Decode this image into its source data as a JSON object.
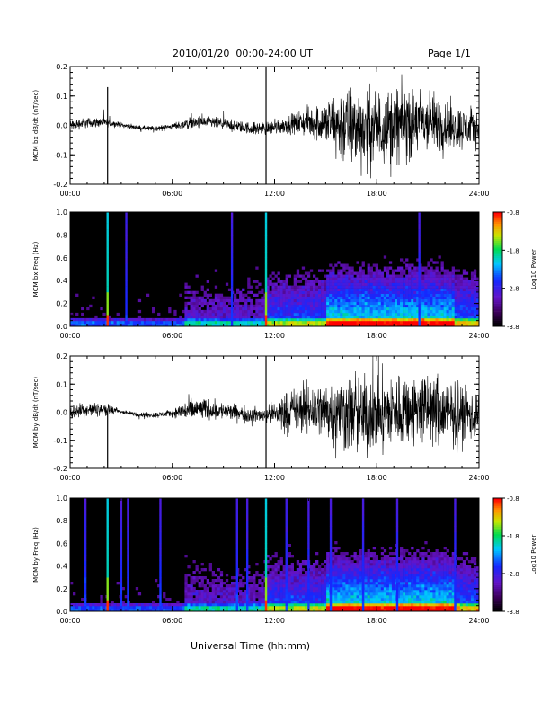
{
  "header": {
    "title": "2010/01/20  00:00-24:00 UT",
    "page": "Page 1/1"
  },
  "x_axis_title": "Universal Time (hh:mm)",
  "chart_data": [
    {
      "type": "line",
      "name": "MCM bx dB/dt",
      "ylabel": "MCM bx dB/dt (nT/sec)",
      "xlim": [
        0,
        24
      ],
      "ylim": [
        -0.2,
        0.2
      ],
      "yticks": [
        "-0.2",
        "-0.1",
        "0.0",
        "0.1",
        "0.2"
      ],
      "xticks": [
        "00:00",
        "06:00",
        "12:00",
        "18:00",
        "24:00"
      ],
      "envelope": [
        {
          "t": 0,
          "amp": 0.03
        },
        {
          "t": 2,
          "amp": 0.025
        },
        {
          "t": 3,
          "amp": 0.012
        },
        {
          "t": 6,
          "amp": 0.015
        },
        {
          "t": 7,
          "amp": 0.035
        },
        {
          "t": 9,
          "amp": 0.03
        },
        {
          "t": 11.5,
          "amp": 0.035
        },
        {
          "t": 13,
          "amp": 0.05
        },
        {
          "t": 15,
          "amp": 0.12
        },
        {
          "t": 16,
          "amp": 0.22
        },
        {
          "t": 20,
          "amp": 0.2
        },
        {
          "t": 24,
          "amp": 0.09
        }
      ],
      "spikes": [
        {
          "t": 2.2,
          "value": 0.13
        },
        {
          "t": 2.2,
          "value": -0.22
        },
        {
          "t": 11.5,
          "value": 0.22
        },
        {
          "t": 11.5,
          "value": -0.22
        }
      ]
    },
    {
      "type": "heatmap",
      "name": "MCM bx Freq",
      "ylabel": "MCM bx Freq (Hz)",
      "xlim": [
        0,
        24
      ],
      "ylim": [
        0,
        1.0
      ],
      "yticks": [
        "0.0",
        "0.2",
        "0.4",
        "0.6",
        "0.8",
        "1.0"
      ],
      "xticks": [
        "00:00",
        "06:00",
        "12:00",
        "18:00",
        "24:00"
      ],
      "colorbar": {
        "label": "Log10 Power",
        "range": [
          -3.8,
          -0.8
        ],
        "ticks": [
          "-0.8",
          "-1.8",
          "-2.8",
          "-3.8"
        ]
      },
      "vertical_bands_hours": [
        2.2,
        3.3,
        9.5,
        11.5,
        20.5
      ]
    },
    {
      "type": "line",
      "name": "MCM by dB/dt",
      "ylabel": "MCM by dB/dt (nT/sec)",
      "xlim": [
        0,
        24
      ],
      "ylim": [
        -0.2,
        0.2
      ],
      "yticks": [
        "-0.2",
        "-0.1",
        "0.0",
        "0.1",
        "0.2"
      ],
      "xticks": [
        "00:00",
        "06:00",
        "12:00",
        "18:00",
        "24:00"
      ],
      "envelope": [
        {
          "t": 0,
          "amp": 0.05
        },
        {
          "t": 2.5,
          "amp": 0.03
        },
        {
          "t": 3,
          "amp": 0.01
        },
        {
          "t": 6,
          "amp": 0.02
        },
        {
          "t": 7,
          "amp": 0.07
        },
        {
          "t": 9,
          "amp": 0.05
        },
        {
          "t": 11.5,
          "amp": 0.04
        },
        {
          "t": 12.5,
          "amp": 0.11
        },
        {
          "t": 15,
          "amp": 0.17
        },
        {
          "t": 16,
          "amp": 0.22
        },
        {
          "t": 22,
          "amp": 0.21
        },
        {
          "t": 24,
          "amp": 0.13
        }
      ],
      "spikes": [
        {
          "t": 2.2,
          "value": -0.22
        },
        {
          "t": 11.5,
          "value": 0.22
        },
        {
          "t": 11.5,
          "value": -0.22
        }
      ]
    },
    {
      "type": "heatmap",
      "name": "MCM by Freq",
      "ylabel": "MCM by Freq (Hz)",
      "xlim": [
        0,
        24
      ],
      "ylim": [
        0,
        1.0
      ],
      "yticks": [
        "0.0",
        "0.2",
        "0.4",
        "0.6",
        "0.8",
        "1.0"
      ],
      "xticks": [
        "00:00",
        "06:00",
        "12:00",
        "18:00",
        "24:00"
      ],
      "colorbar": {
        "label": "Log10 Power",
        "range": [
          -3.8,
          -0.8
        ],
        "ticks": [
          "-0.8",
          "-1.8",
          "-2.8",
          "-3.8"
        ]
      },
      "vertical_bands_hours": [
        0.9,
        2.2,
        3.0,
        3.4,
        5.3,
        9.8,
        10.4,
        11.5,
        12.7,
        14.0,
        15.3,
        17.2,
        19.2,
        22.6
      ]
    }
  ]
}
